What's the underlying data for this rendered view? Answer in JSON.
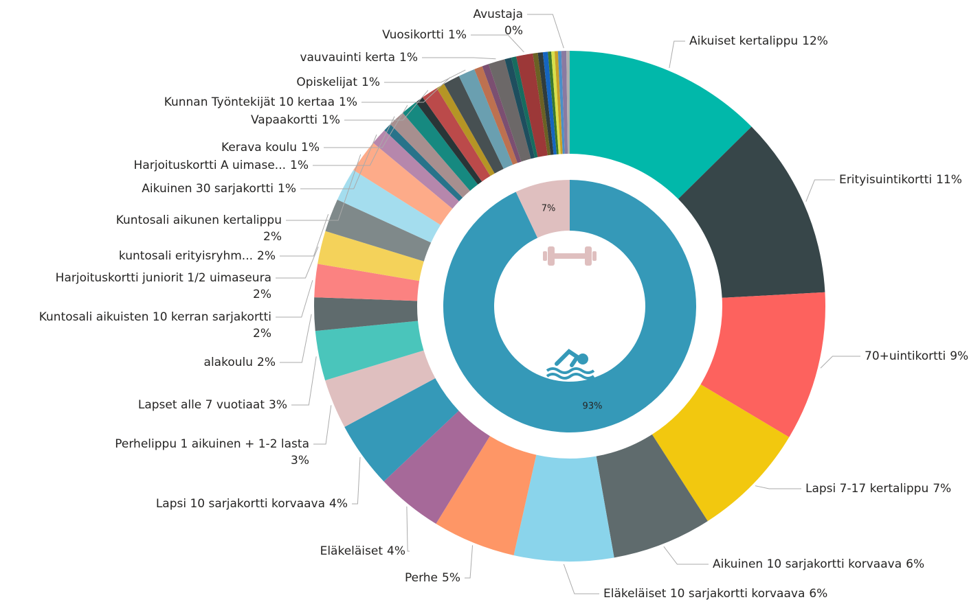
{
  "chart_data": [
    {
      "type": "donut",
      "categories": [
        "Aikuiset kertalippu",
        "Erityisuintikortti",
        "70+uintikortti",
        "Lapsi 7-17 kertalippu",
        "Aikuinen 10 sarjakortti korvaava",
        "Eläkeläiset 10 sarjakortti korvaava",
        "Perhe",
        "Eläkeläiset",
        "Lapsi 10 sarjakortti korvaava",
        "Perhelippu 1 aikuinen + 1-2 lasta",
        "Lapset alle 7 vuotiaat",
        "alakoulu",
        "Kuntosali aikuisten 10 kerran sarjakortti",
        "Harjoituskortti juniorit 1/2 uimaseura",
        "kuntosali erityisryhm...",
        null,
        "Kuntosali aikunen kertalippu",
        "Aikuinen 30 sarjakortti",
        null,
        "Harjoituskortti A uimase...",
        "Kerava koulu",
        null,
        "Vapaakortti",
        null,
        "Kunnan Työntekijät 10 kertaa",
        "Opiskelijat",
        null,
        null,
        "vauvauinti kerta",
        null,
        null,
        "Vuosikortti",
        null,
        null,
        null,
        null,
        null,
        null,
        null,
        "Avustaja",
        null
      ],
      "values": [
        12,
        11,
        9,
        7,
        6,
        6,
        5,
        4,
        4,
        3,
        3,
        2,
        2,
        2,
        2,
        2,
        2,
        1,
        0.5,
        1,
        1,
        0.5,
        1,
        0.5,
        1,
        1,
        0.5,
        0.4,
        1,
        0.4,
        0.3,
        1,
        0.3,
        0.3,
        0.3,
        0.2,
        0.2,
        0.2,
        0.2,
        0.3,
        0.2
      ],
      "value_labels": [
        "12%",
        "11%",
        "9%",
        "7%",
        "6%",
        "6%",
        "5%",
        "4%",
        "4%",
        "3%",
        "3%",
        "2%",
        "2%",
        "2%",
        "2%",
        null,
        "2%",
        "1%",
        null,
        "1%",
        "1%",
        null,
        "1%",
        null,
        "1%",
        "1%",
        null,
        null,
        "1%",
        null,
        null,
        "1%",
        null,
        null,
        null,
        null,
        null,
        null,
        null,
        "0%",
        null
      ],
      "colors": [
        "#01b8aa",
        "#374649",
        "#fd625e",
        "#f2c80f",
        "#5f6b6d",
        "#8ad4eb",
        "#fe9666",
        "#a66999",
        "#3599b8",
        "#dfbfbf",
        "#4ac5bb",
        "#5f6b6d",
        "#fb8281",
        "#f4d25a",
        "#7f898a",
        "#a4ddee",
        "#fdab89",
        "#b687ac",
        "#28738a",
        "#a78f8f",
        "#168980",
        "#293537",
        "#bb4a4a",
        "#b59525",
        "#475052",
        "#6a9fb0",
        "#bd7150",
        "#7b4f71",
        "#6c6868",
        "#1e4e5e",
        "#176c5f",
        "#9c3838",
        "#6b6124",
        "#2f3c3e",
        "#1565c0",
        "#3d7a2a",
        "#d8e04a",
        "#c8a028",
        "#4a90c8",
        "#8a7aa0",
        "#b0b0b0"
      ]
    },
    {
      "type": "donut",
      "values": [
        93,
        7
      ],
      "value_labels": [
        "93%",
        "7%"
      ],
      "colors": [
        "#3599b8",
        "#dfbfbf"
      ]
    }
  ]
}
